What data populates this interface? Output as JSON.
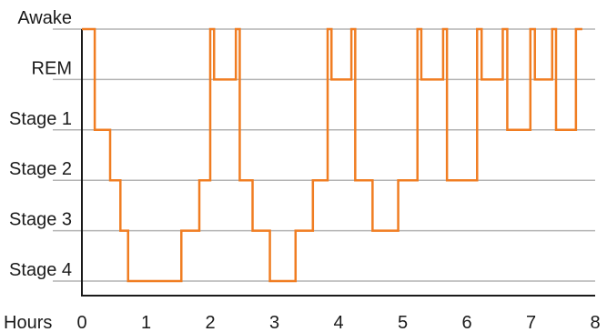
{
  "chart_data": {
    "type": "line",
    "title": "",
    "xlabel": "Hours",
    "ylabel": "",
    "xlim": [
      0,
      8
    ],
    "x_ticks": [
      "0",
      "1",
      "2",
      "3",
      "4",
      "5",
      "6",
      "7",
      "8"
    ],
    "y_categories": [
      "Awake",
      "REM",
      "Stage 1",
      "Stage 2",
      "Stage 3",
      "Stage 4"
    ],
    "grid": true,
    "line_color": "#f07d22",
    "grid_color": "#b3b3b3",
    "axis_color": "#1a1a1a",
    "series": [
      {
        "step": "post",
        "points": [
          [
            0.0,
            "Awake"
          ],
          [
            0.2,
            "Stage 1"
          ],
          [
            0.44,
            "Stage 2"
          ],
          [
            0.6,
            "Stage 3"
          ],
          [
            0.72,
            "Stage 4"
          ],
          [
            1.55,
            "Stage 3"
          ],
          [
            1.83,
            "Stage 2"
          ],
          [
            2.0,
            "Awake"
          ],
          [
            2.06,
            "REM"
          ],
          [
            2.4,
            "Awake"
          ],
          [
            2.46,
            "Stage 2"
          ],
          [
            2.66,
            "Stage 3"
          ],
          [
            2.93,
            "Stage 4"
          ],
          [
            3.33,
            "Stage 3"
          ],
          [
            3.6,
            "Stage 2"
          ],
          [
            3.83,
            "Awake"
          ],
          [
            3.89,
            "REM"
          ],
          [
            4.2,
            "Awake"
          ],
          [
            4.26,
            "Stage 2"
          ],
          [
            4.53,
            "Stage 3"
          ],
          [
            4.93,
            "Stage 2"
          ],
          [
            5.23,
            "Awake"
          ],
          [
            5.29,
            "REM"
          ],
          [
            5.63,
            "Awake"
          ],
          [
            5.69,
            "Stage 2"
          ],
          [
            6.16,
            "Awake"
          ],
          [
            6.23,
            "REM"
          ],
          [
            6.56,
            "Awake"
          ],
          [
            6.63,
            "Stage 1"
          ],
          [
            6.99,
            "Awake"
          ],
          [
            7.06,
            "REM"
          ],
          [
            7.33,
            "Awake"
          ],
          [
            7.39,
            "Stage 1"
          ],
          [
            7.7,
            "Awake"
          ],
          [
            7.8,
            "Awake"
          ]
        ]
      }
    ]
  }
}
